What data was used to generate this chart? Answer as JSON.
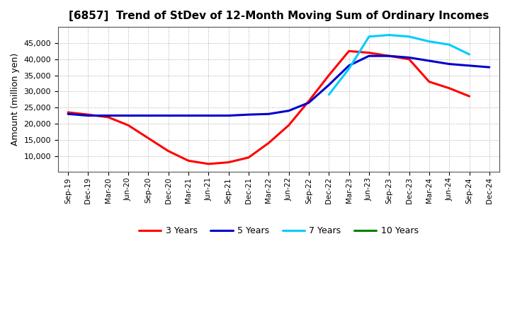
{
  "title": "[6857]  Trend of StDev of 12-Month Moving Sum of Ordinary Incomes",
  "ylabel": "Amount (million yen)",
  "background_color": "#ffffff",
  "grid_color": "#aaaaaa",
  "xtick_labels": [
    "Sep-19",
    "Dec-19",
    "Mar-20",
    "Jun-20",
    "Sep-20",
    "Dec-20",
    "Mar-21",
    "Jun-21",
    "Sep-21",
    "Dec-21",
    "Mar-22",
    "Jun-22",
    "Sep-22",
    "Dec-22",
    "Mar-23",
    "Jun-23",
    "Sep-23",
    "Dec-23",
    "Mar-24",
    "Jun-24",
    "Sep-24",
    "Dec-24"
  ],
  "series": {
    "3 Years": {
      "color": "#ff0000",
      "linewidth": 2.2,
      "values": [
        23500,
        22800,
        22000,
        19500,
        15500,
        11500,
        8500,
        7500,
        8000,
        9500,
        14000,
        19500,
        27000,
        35000,
        42500,
        42000,
        41000,
        40000,
        33000,
        31000,
        28500,
        null
      ]
    },
    "5 Years": {
      "color": "#0000cc",
      "linewidth": 2.2,
      "values": [
        23000,
        22500,
        22500,
        22500,
        22500,
        22500,
        22500,
        22500,
        22500,
        22800,
        23000,
        24000,
        26500,
        32000,
        38000,
        41000,
        41000,
        40500,
        39500,
        38500,
        38000,
        37500
      ]
    },
    "7 Years": {
      "color": "#00ccff",
      "linewidth": 2.2,
      "values": [
        null,
        null,
        null,
        null,
        null,
        null,
        null,
        null,
        null,
        null,
        null,
        null,
        null,
        29000,
        37000,
        47000,
        47500,
        47000,
        45500,
        44500,
        41500,
        null
      ]
    },
    "10 Years": {
      "color": "#008000",
      "linewidth": 2.2,
      "values": [
        null,
        null,
        null,
        null,
        null,
        null,
        null,
        null,
        null,
        null,
        null,
        null,
        null,
        null,
        null,
        null,
        null,
        null,
        null,
        null,
        null,
        null
      ]
    }
  }
}
